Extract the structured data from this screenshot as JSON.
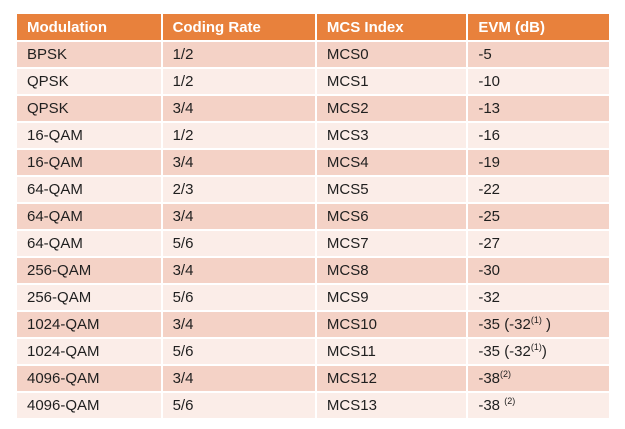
{
  "colors": {
    "header_bg": "#E8813C",
    "header_text": "#FFFFFF",
    "row_band_dark": "#F4D2C6",
    "row_band_light": "#FBEDE8",
    "cell_text": "#1F1F1F",
    "grid_line": "#FFFFFF",
    "page_bg": "#FFFFFF"
  },
  "table": {
    "headers": [
      {
        "key": "modulation",
        "label": "Modulation"
      },
      {
        "key": "coding_rate",
        "label": "Coding Rate"
      },
      {
        "key": "mcs_index",
        "label": "MCS Index"
      },
      {
        "key": "evm",
        "label": "EVM (dB)"
      }
    ],
    "rows": [
      {
        "modulation": "BPSK",
        "coding_rate": "1/2",
        "mcs_index": "MCS0",
        "evm": [
          {
            "text": "-5"
          }
        ]
      },
      {
        "modulation": "QPSK",
        "coding_rate": "1/2",
        "mcs_index": "MCS1",
        "evm": [
          {
            "text": "-10"
          }
        ]
      },
      {
        "modulation": "QPSK",
        "coding_rate": "3/4",
        "mcs_index": "MCS2",
        "evm": [
          {
            "text": "-13"
          }
        ]
      },
      {
        "modulation": "16-QAM",
        "coding_rate": "1/2",
        "mcs_index": "MCS3",
        "evm": [
          {
            "text": "-16"
          }
        ]
      },
      {
        "modulation": "16-QAM",
        "coding_rate": "3/4",
        "mcs_index": "MCS4",
        "evm": [
          {
            "text": "-19"
          }
        ]
      },
      {
        "modulation": "64-QAM",
        "coding_rate": "2/3",
        "mcs_index": "MCS5",
        "evm": [
          {
            "text": "-22"
          }
        ]
      },
      {
        "modulation": "64-QAM",
        "coding_rate": "3/4",
        "mcs_index": "MCS6",
        "evm": [
          {
            "text": "-25"
          }
        ]
      },
      {
        "modulation": "64-QAM",
        "coding_rate": "5/6",
        "mcs_index": "MCS7",
        "evm": [
          {
            "text": "-27"
          }
        ]
      },
      {
        "modulation": "256-QAM",
        "coding_rate": "3/4",
        "mcs_index": "MCS8",
        "evm": [
          {
            "text": "-30"
          }
        ]
      },
      {
        "modulation": "256-QAM",
        "coding_rate": "5/6",
        "mcs_index": "MCS9",
        "evm": [
          {
            "text": "-32"
          }
        ]
      },
      {
        "modulation": "1024-QAM",
        "coding_rate": "3/4",
        "mcs_index": "MCS10",
        "evm": [
          {
            "text": "-35 (-32"
          },
          {
            "text": "(1)",
            "sup": true
          },
          {
            "text": " )"
          }
        ]
      },
      {
        "modulation": "1024-QAM",
        "coding_rate": "5/6",
        "mcs_index": "MCS11",
        "evm": [
          {
            "text": "-35 (-32"
          },
          {
            "text": "(1)",
            "sup": true
          },
          {
            "text": ")"
          }
        ]
      },
      {
        "modulation": "4096-QAM",
        "coding_rate": "3/4",
        "mcs_index": "MCS12",
        "evm": [
          {
            "text": "-38"
          },
          {
            "text": "(2)",
            "sup": true
          }
        ]
      },
      {
        "modulation": "4096-QAM",
        "coding_rate": "5/6",
        "mcs_index": "MCS13",
        "evm": [
          {
            "text": "-38 "
          },
          {
            "text": "(2)",
            "sup": true
          }
        ]
      }
    ]
  }
}
